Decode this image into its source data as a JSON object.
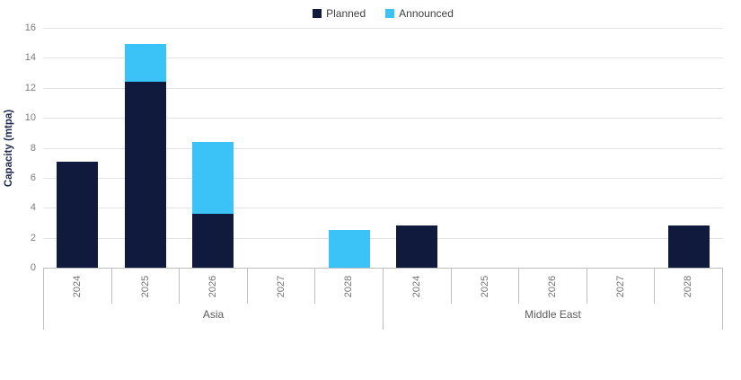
{
  "chart_data": {
    "type": "bar",
    "stacked": true,
    "title": "",
    "ylabel": "Capacity (mtpa)",
    "xlabel": "",
    "ylim": [
      0,
      16
    ],
    "ytick_step": 2,
    "grid": true,
    "legend_position": "top",
    "groups": [
      "Asia",
      "Middle East"
    ],
    "categories": [
      "2024",
      "2025",
      "2026",
      "2027",
      "2028"
    ],
    "series": [
      {
        "name": "Planned",
        "color": "#101a3c",
        "values": {
          "Asia": [
            7.1,
            12.4,
            3.6,
            0,
            0
          ],
          "Middle East": [
            2.8,
            0,
            0,
            0,
            2.8
          ]
        }
      },
      {
        "name": "Announced",
        "color": "#3bc2f6",
        "values": {
          "Asia": [
            0,
            2.5,
            4.8,
            0,
            2.5
          ],
          "Middle East": [
            0,
            0,
            0,
            0,
            0
          ]
        }
      }
    ],
    "colors": {
      "planned": "#101a3c",
      "announced": "#3bc2f6",
      "gridline": "#e3e3e3",
      "axis_border": "#bfbfbf",
      "tick_text": "#7c7c7c",
      "group_text": "#5c5c5c",
      "legend_text": "#3f3f3f",
      "ylabel_text": "#1f2a4e"
    }
  }
}
